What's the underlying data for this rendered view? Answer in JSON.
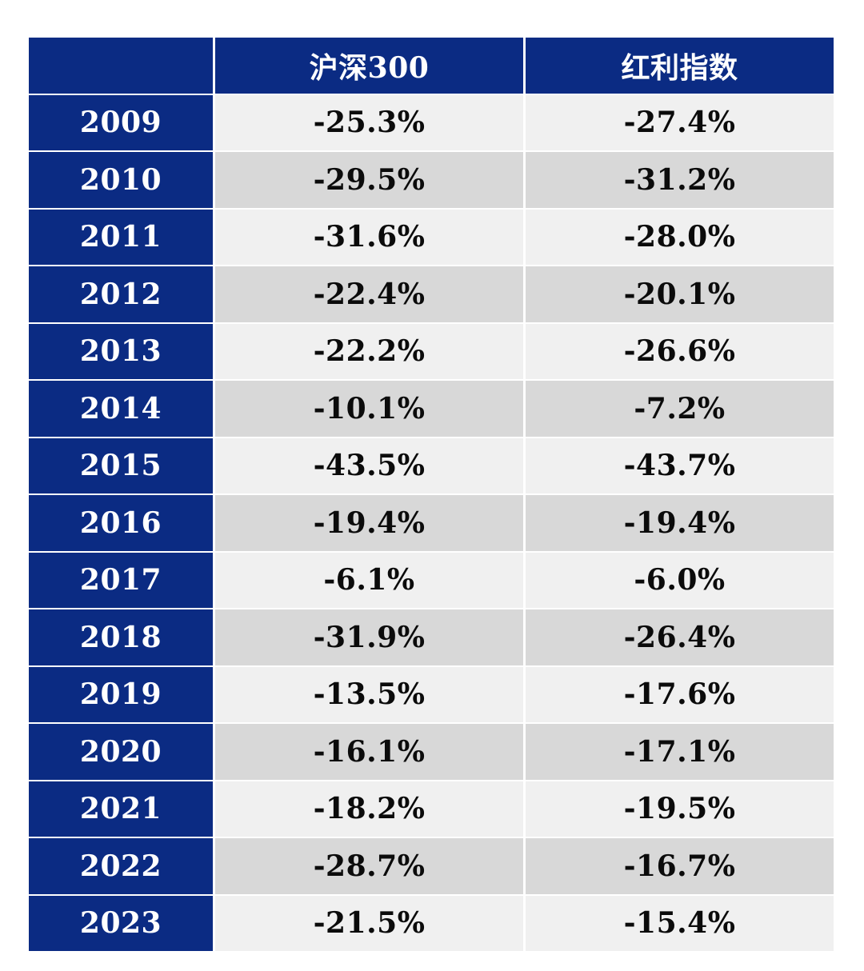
{
  "table": {
    "headers": [
      "",
      "沪深300",
      "红利指数"
    ],
    "rows": [
      {
        "year": "2009",
        "hs300": "-25.3%",
        "dividend": "-27.4%"
      },
      {
        "year": "2010",
        "hs300": "-29.5%",
        "dividend": "-31.2%"
      },
      {
        "year": "2011",
        "hs300": "-31.6%",
        "dividend": "-28.0%"
      },
      {
        "year": "2012",
        "hs300": "-22.4%",
        "dividend": "-20.1%"
      },
      {
        "year": "2013",
        "hs300": "-22.2%",
        "dividend": "-26.6%"
      },
      {
        "year": "2014",
        "hs300": "-10.1%",
        "dividend": "-7.2%"
      },
      {
        "year": "2015",
        "hs300": "-43.5%",
        "dividend": "-43.7%"
      },
      {
        "year": "2016",
        "hs300": "-19.4%",
        "dividend": "-19.4%"
      },
      {
        "year": "2017",
        "hs300": "-6.1%",
        "dividend": "-6.0%"
      },
      {
        "year": "2018",
        "hs300": "-31.9%",
        "dividend": "-26.4%"
      },
      {
        "year": "2019",
        "hs300": "-13.5%",
        "dividend": "-17.6%"
      },
      {
        "year": "2020",
        "hs300": "-16.1%",
        "dividend": "-17.1%"
      },
      {
        "year": "2021",
        "hs300": "-18.2%",
        "dividend": "-19.5%"
      },
      {
        "year": "2022",
        "hs300": "-28.7%",
        "dividend": "-16.7%"
      },
      {
        "year": "2023",
        "hs300": "-21.5%",
        "dividend": "-15.4%"
      }
    ]
  },
  "colors": {
    "header_bg": "#0b2b83",
    "row_light": "#f0f0f0",
    "row_dark": "#d8d8d8"
  }
}
